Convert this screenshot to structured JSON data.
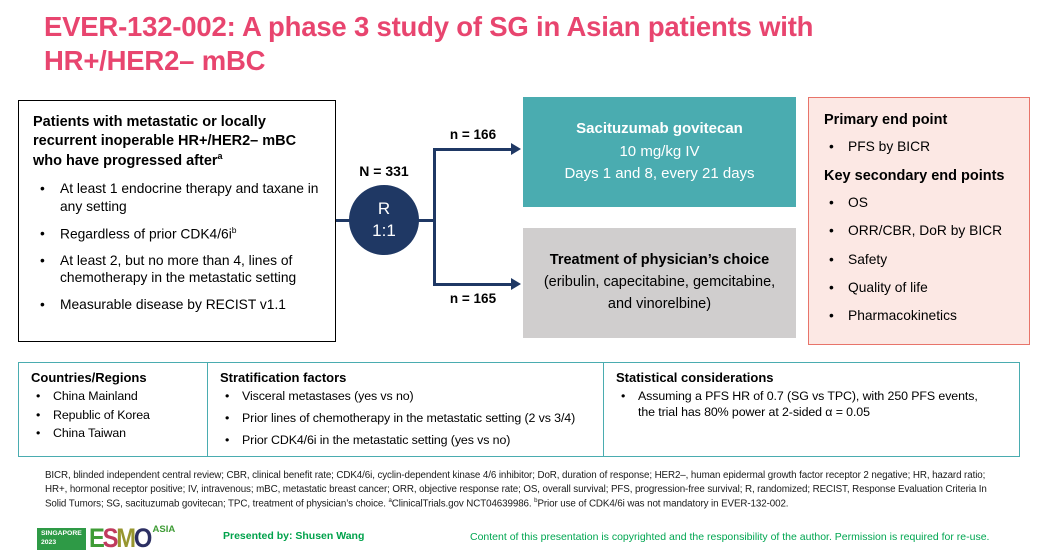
{
  "slide": {
    "title_line1": "EVER-132-002: A phase 3 study of SG in Asian patients with",
    "title_line2": "HR+/HER2– mBC"
  },
  "eligibility": {
    "header": "Patients with metastatic or locally recurrent inoperable HR+/HER2– mBC who have progressed after",
    "header_sup": "a",
    "bullets": [
      "At least 1 endocrine therapy and taxane in any setting",
      "Regardless of prior CDK4/6i",
      "At least 2, but no more than 4, lines of chemotherapy in the metastatic setting",
      "Measurable disease by RECIST v1.1"
    ],
    "bullet_2_sup": "b"
  },
  "randomization": {
    "n_total": "N = 331",
    "circle_line1": "R",
    "circle_line2": "1:1",
    "arm_top_n": "n = 166",
    "arm_bottom_n": "n = 165"
  },
  "arm_sg": {
    "line1": "Sacituzumab govitecan",
    "line2": "10 mg/kg IV",
    "line3": "Days 1 and 8, every 21 days"
  },
  "arm_tpc": {
    "line1": "Treatment of physician’s choice",
    "line2": "(eribulin, capecitabine, gemcitabine,\nand vinorelbine)"
  },
  "endpoints": {
    "primary_header": "Primary end point",
    "primary_bullets": [
      "PFS by BICR"
    ],
    "secondary_header": "Key secondary end points",
    "secondary_bullets": [
      "OS",
      "ORR/CBR, DoR by BICR",
      "Safety",
      "Quality of life",
      "Pharmacokinetics"
    ]
  },
  "info_table": {
    "columns": [
      {
        "header": "Countries/Regions",
        "bullets": [
          "China Mainland",
          "Republic of Korea",
          "China Taiwan"
        ]
      },
      {
        "header": "Stratification factors",
        "bullets": [
          "Visceral metastases (yes vs no)",
          "Prior lines of chemotherapy in the metastatic setting (2 vs 3/4)",
          "Prior CDK4/6i in the metastatic setting (yes vs no)"
        ]
      },
      {
        "header": "Statistical considerations",
        "bullets": [
          "Assuming a PFS HR of 0.7 (SG vs TPC), with 250 PFS events,\nthe trial has 80% power at 2-sided α = 0.05"
        ]
      }
    ]
  },
  "footnotes": {
    "line1": "BICR, blinded independent central review; CBR, clinical benefit rate; CDK4/6i, cyclin-dependent kinase 4/6 inhibitor; DoR, duration of response; HER2–, human epidermal growth factor receptor 2 negative; HR, hazard ratio;",
    "line2": "HR+, hormonal receptor positive; IV, intravenous; mBC, metastatic breast cancer; ORR, objective response rate; OS, overall survival; PFS, progression-free survival; R, randomized; RECIST, Response Evaluation Criteria In",
    "line3_pre": "Solid Tumors; SG, sacituzumab govitecan; TPC, treatment of physician’s choice. ",
    "line3_sup_a": "a",
    "line3_mid": "ClinicalTrials.gov NCT04639986. ",
    "line3_sup_b": "b",
    "line3_post": "Prior use of CDK4/6i was not mandatory in EVER-132-002."
  },
  "footer": {
    "logo": {
      "venue_line1": "SINGAPORE",
      "venue_line2": "2023",
      "letters": [
        "E",
        "S",
        "M",
        "O"
      ],
      "region": "ASIA"
    },
    "presented_by": "Presented by: Shusen Wang",
    "copyright": "Content of this presentation is copyrighted and the responsibility of the author. Permission is required for re-use."
  },
  "colors": {
    "title_pink": "#E8456F",
    "schema_navy": "#1F3864",
    "sg_arm_teal": "#4AACB0",
    "tpc_arm_gray": "#D0CECE",
    "endpoints_fill": "#FCE8E4",
    "endpoints_border": "#E8746A",
    "footer_green": "#00A651"
  }
}
